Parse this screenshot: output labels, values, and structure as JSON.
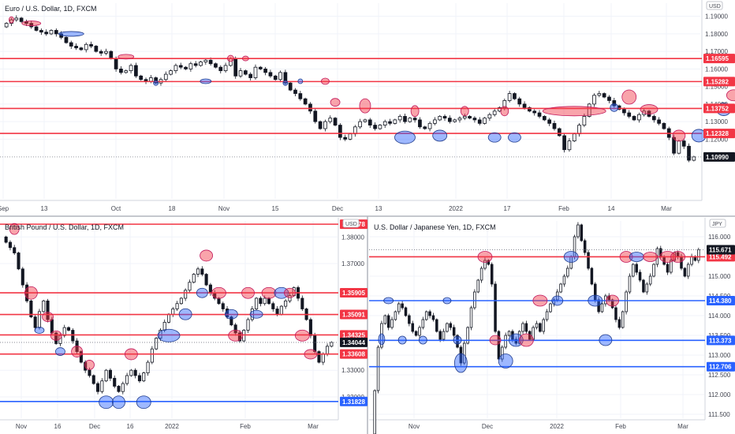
{
  "chart_data": [
    {
      "type": "candlestick",
      "title": "Euro / U.S. Dollar, 1D, FXCM",
      "currency": "USD",
      "ylim": [
        1.086,
        1.1975
      ],
      "y_ticks": [
        "1.19000",
        "1.18000",
        "1.17000",
        "1.16000",
        "1.15000",
        "1.14000",
        "1.13000",
        "1.12000"
      ],
      "x_ticks": [
        "Sep",
        "13",
        "Oct",
        "18",
        "Nov",
        "15",
        "Dec",
        "13",
        "2022",
        "17",
        "Feb",
        "14",
        "Mar"
      ],
      "levels": [
        {
          "label": "1.16595",
          "value": 1.16595,
          "color": "#f23645"
        },
        {
          "label": "1.15282",
          "value": 1.15282,
          "color": "#f23645"
        },
        {
          "label": "1.13752",
          "value": 1.13752,
          "color": "#f23645"
        },
        {
          "label": "1.12328",
          "value": 1.12328,
          "color": "#f23645"
        }
      ],
      "last_price": {
        "label": "1.10990",
        "value": 1.1099
      },
      "closes": [
        1.186,
        1.188,
        1.189,
        1.187,
        1.186,
        1.184,
        1.182,
        1.181,
        1.18,
        1.182,
        1.18,
        1.178,
        1.175,
        1.173,
        1.172,
        1.171,
        1.174,
        1.173,
        1.17,
        1.169,
        1.17,
        1.166,
        1.16,
        1.158,
        1.159,
        1.162,
        1.156,
        1.154,
        1.153,
        1.155,
        1.152,
        1.154,
        1.157,
        1.159,
        1.162,
        1.161,
        1.16,
        1.163,
        1.162,
        1.164,
        1.165,
        1.163,
        1.161,
        1.159,
        1.162,
        1.166,
        1.156,
        1.159,
        1.157,
        1.155,
        1.161,
        1.16,
        1.158,
        1.156,
        1.154,
        1.158,
        1.152,
        1.148,
        1.146,
        1.143,
        1.14,
        1.136,
        1.13,
        1.126,
        1.13,
        1.132,
        1.128,
        1.121,
        1.12,
        1.123,
        1.127,
        1.13,
        1.131,
        1.128,
        1.126,
        1.128,
        1.13,
        1.129,
        1.131,
        1.133,
        1.13,
        1.132,
        1.131,
        1.127,
        1.126,
        1.129,
        1.131,
        1.133,
        1.132,
        1.13,
        1.131,
        1.132,
        1.133,
        1.132,
        1.131,
        1.129,
        1.132,
        1.134,
        1.136,
        1.138,
        1.142,
        1.146,
        1.143,
        1.14,
        1.138,
        1.136,
        1.135,
        1.133,
        1.131,
        1.129,
        1.126,
        1.122,
        1.114,
        1.119,
        1.123,
        1.128,
        1.133,
        1.14,
        1.145,
        1.146,
        1.144,
        1.142,
        1.139,
        1.137,
        1.135,
        1.133,
        1.131,
        1.134,
        1.136,
        1.133,
        1.131,
        1.129,
        1.126,
        1.121,
        1.112,
        1.119,
        1.116,
        1.108,
        1.1099
      ],
      "markers": [
        {
          "i": 1,
          "v": 1.188,
          "rx": 3,
          "ry": 4,
          "fill": "red"
        },
        {
          "i": 5,
          "v": 1.186,
          "rx": 12,
          "ry": 3,
          "fill": "red"
        },
        {
          "i": 13,
          "v": 1.18,
          "rx": 16,
          "ry": 3,
          "fill": "blue"
        },
        {
          "i": 24,
          "v": 1.167,
          "rx": 10,
          "ry": 3,
          "fill": "red"
        },
        {
          "i": 30,
          "v": 1.152,
          "rx": 3,
          "ry": 3,
          "fill": "blue"
        },
        {
          "i": 40,
          "v": 1.153,
          "rx": 7,
          "ry": 3,
          "fill": "blue"
        },
        {
          "i": 45,
          "v": 1.166,
          "rx": 4,
          "ry": 4,
          "fill": "red"
        },
        {
          "i": 48,
          "v": 1.166,
          "rx": 4,
          "ry": 3,
          "fill": "red"
        },
        {
          "i": 56,
          "v": 1.152,
          "rx": 3,
          "ry": 3,
          "fill": "blue"
        },
        {
          "i": 59,
          "v": 1.153,
          "rx": 3,
          "ry": 3,
          "fill": "blue"
        },
        {
          "i": 64,
          "v": 1.153,
          "rx": 5,
          "ry": 4,
          "fill": "red"
        },
        {
          "i": 66,
          "v": 1.141,
          "rx": 6,
          "ry": 5,
          "fill": "red"
        },
        {
          "i": 72,
          "v": 1.139,
          "rx": 7,
          "ry": 9,
          "fill": "red"
        },
        {
          "i": 80,
          "v": 1.121,
          "rx": 13,
          "ry": 8,
          "fill": "blue"
        },
        {
          "i": 82,
          "v": 1.136,
          "rx": 5,
          "ry": 7,
          "fill": "red"
        },
        {
          "i": 87,
          "v": 1.122,
          "rx": 9,
          "ry": 7,
          "fill": "blue"
        },
        {
          "i": 92,
          "v": 1.136,
          "rx": 5,
          "ry": 6,
          "fill": "red"
        },
        {
          "i": 98,
          "v": 1.121,
          "rx": 8,
          "ry": 6,
          "fill": "blue"
        },
        {
          "i": 100,
          "v": 1.136,
          "rx": 5,
          "ry": 6,
          "fill": "red"
        },
        {
          "i": 102,
          "v": 1.121,
          "rx": 8,
          "ry": 6,
          "fill": "blue"
        },
        {
          "i": 114,
          "v": 1.136,
          "rx": 40,
          "ry": 6,
          "fill": "red"
        },
        {
          "i": 125,
          "v": 1.144,
          "rx": 9,
          "ry": 9,
          "fill": "red"
        },
        {
          "i": 122,
          "v": 1.138,
          "rx": 5,
          "ry": 5,
          "fill": "blue"
        },
        {
          "i": 129,
          "v": 1.137,
          "rx": 11,
          "ry": 6,
          "fill": "red"
        },
        {
          "i": 135,
          "v": 1.122,
          "rx": 8,
          "ry": 7,
          "fill": "red"
        },
        {
          "i": 139,
          "v": 1.122,
          "rx": 9,
          "ry": 8,
          "fill": "blue"
        },
        {
          "i": 144,
          "v": 1.137,
          "rx": 9,
          "ry": 8,
          "fill": "blue"
        },
        {
          "i": 146,
          "v": 1.145,
          "rx": 9,
          "ry": 7,
          "fill": "red"
        },
        {
          "i": 155,
          "v": 1.138,
          "rx": 13,
          "ry": 7,
          "fill": "red"
        },
        {
          "i": 162,
          "v": 1.122,
          "rx": 8,
          "ry": 7,
          "fill": "red"
        }
      ]
    },
    {
      "type": "candlestick",
      "title": "British Pound / U.S. Dollar, 1D, FXCM",
      "currency": "USD",
      "ylim": [
        1.312,
        1.386
      ],
      "y_ticks": [
        "1.38000",
        "1.37000",
        "1.33000",
        "1.32000"
      ],
      "x_ticks": [
        "Nov",
        "16",
        "Dec",
        "16",
        "2022",
        "Feb",
        "Mar"
      ],
      "levels": [
        {
          "label": "1.38478",
          "value": 1.38478,
          "color": "#f23645"
        },
        {
          "label": "1.35905",
          "value": 1.35905,
          "color": "#f23645"
        },
        {
          "label": "1.35091",
          "value": 1.35091,
          "color": "#f23645"
        },
        {
          "label": "1.34325",
          "value": 1.34325,
          "color": "#f23645"
        },
        {
          "label": "1.33608",
          "value": 1.33608,
          "color": "#f23645"
        },
        {
          "label": "1.31828",
          "value": 1.31828,
          "color": "#2962ff"
        }
      ],
      "last_price": {
        "label": "1.34044",
        "value": 1.34044
      },
      "closes": [
        1.378,
        1.376,
        1.374,
        1.368,
        1.362,
        1.356,
        1.35,
        1.346,
        1.352,
        1.356,
        1.349,
        1.344,
        1.34,
        1.343,
        1.346,
        1.345,
        1.341,
        1.337,
        1.333,
        1.33,
        1.328,
        1.325,
        1.322,
        1.326,
        1.33,
        1.327,
        1.324,
        1.322,
        1.325,
        1.328,
        1.33,
        1.328,
        1.326,
        1.329,
        1.333,
        1.338,
        1.342,
        1.345,
        1.348,
        1.351,
        1.353,
        1.355,
        1.357,
        1.36,
        1.363,
        1.366,
        1.368,
        1.366,
        1.362,
        1.359,
        1.357,
        1.355,
        1.353,
        1.35,
        1.347,
        1.344,
        1.341,
        1.345,
        1.349,
        1.353,
        1.357,
        1.355,
        1.357,
        1.355,
        1.353,
        1.351,
        1.354,
        1.356,
        1.358,
        1.361,
        1.357,
        1.353,
        1.349,
        1.343,
        1.337,
        1.333,
        1.336,
        1.339,
        1.34044
      ],
      "markers": [
        {
          "i": 2,
          "v": 1.383,
          "rx": 6,
          "ry": 7,
          "fill": "red"
        },
        {
          "i": 6,
          "v": 1.359,
          "rx": 8,
          "ry": 8,
          "fill": "red"
        },
        {
          "i": 8,
          "v": 1.345,
          "rx": 6,
          "ry": 4,
          "fill": "blue"
        },
        {
          "i": 10,
          "v": 1.35,
          "rx": 7,
          "ry": 6,
          "fill": "red"
        },
        {
          "i": 12,
          "v": 1.343,
          "rx": 7,
          "ry": 6,
          "fill": "red"
        },
        {
          "i": 13,
          "v": 1.337,
          "rx": 6,
          "ry": 5,
          "fill": "blue"
        },
        {
          "i": 17,
          "v": 1.337,
          "rx": 7,
          "ry": 7,
          "fill": "red"
        },
        {
          "i": 20,
          "v": 1.332,
          "rx": 6,
          "ry": 6,
          "fill": "red"
        },
        {
          "i": 24,
          "v": 1.318,
          "rx": 9,
          "ry": 8,
          "fill": "blue"
        },
        {
          "i": 27,
          "v": 1.318,
          "rx": 8,
          "ry": 8,
          "fill": "blue"
        },
        {
          "i": 30,
          "v": 1.336,
          "rx": 8,
          "ry": 7,
          "fill": "red"
        },
        {
          "i": 33,
          "v": 1.318,
          "rx": 9,
          "ry": 8,
          "fill": "blue"
        },
        {
          "i": 39,
          "v": 1.343,
          "rx": 14,
          "ry": 8,
          "fill": "blue"
        },
        {
          "i": 43,
          "v": 1.351,
          "rx": 8,
          "ry": 7,
          "fill": "blue"
        },
        {
          "i": 47,
          "v": 1.359,
          "rx": 7,
          "ry": 6,
          "fill": "blue"
        },
        {
          "i": 48,
          "v": 1.373,
          "rx": 8,
          "ry": 7,
          "fill": "red"
        },
        {
          "i": 51,
          "v": 1.359,
          "rx": 9,
          "ry": 7,
          "fill": "red"
        },
        {
          "i": 54,
          "v": 1.351,
          "rx": 8,
          "ry": 6,
          "fill": "blue"
        },
        {
          "i": 55,
          "v": 1.343,
          "rx": 9,
          "ry": 7,
          "fill": "red"
        },
        {
          "i": 58,
          "v": 1.359,
          "rx": 8,
          "ry": 7,
          "fill": "red"
        },
        {
          "i": 60,
          "v": 1.351,
          "rx": 8,
          "ry": 5,
          "fill": "blue"
        },
        {
          "i": 63,
          "v": 1.359,
          "rx": 9,
          "ry": 7,
          "fill": "red"
        },
        {
          "i": 66,
          "v": 1.359,
          "rx": 9,
          "ry": 7,
          "fill": "blue"
        },
        {
          "i": 68,
          "v": 1.359,
          "rx": 7,
          "ry": 6,
          "fill": "red"
        },
        {
          "i": 71,
          "v": 1.343,
          "rx": 9,
          "ry": 7,
          "fill": "red"
        },
        {
          "i": 73,
          "v": 1.336,
          "rx": 8,
          "ry": 6,
          "fill": "red"
        }
      ]
    },
    {
      "type": "candlestick",
      "title": "U.S. Dollar / Japanese Yen, 1D, FXCM",
      "currency": "JPY",
      "ylim": [
        111.4,
        116.4
      ],
      "y_ticks": [
        "116.000",
        "115.500",
        "115.000",
        "114.500",
        "114.000",
        "113.500",
        "113.000",
        "112.500",
        "112.000",
        "111.500"
      ],
      "x_ticks": [
        "Nov",
        "Dec",
        "2022",
        "Feb",
        "Mar"
      ],
      "levels": [
        {
          "label": "115.492",
          "value": 115.492,
          "color": "#f23645"
        },
        {
          "label": "114.380",
          "value": 114.38,
          "color": "#2962ff"
        },
        {
          "label": "113.373",
          "value": 113.373,
          "color": "#2962ff"
        },
        {
          "label": "112.706",
          "value": 112.706,
          "color": "#2962ff"
        }
      ],
      "last_price": {
        "label": "115.671",
        "value": 115.671
      },
      "closes": [
        112.1,
        113.2,
        113.8,
        114.0,
        113.7,
        113.9,
        114.1,
        114.3,
        114.2,
        114.0,
        113.8,
        113.6,
        113.5,
        113.7,
        113.9,
        114.1,
        114.0,
        113.9,
        113.6,
        113.4,
        113.6,
        113.8,
        113.7,
        113.5,
        113.2,
        112.8,
        113.3,
        113.7,
        114.2,
        114.6,
        114.9,
        115.2,
        115.4,
        115.3,
        114.8,
        113.6,
        112.9,
        113.2,
        113.5,
        113.6,
        113.4,
        113.3,
        113.6,
        113.8,
        113.6,
        113.4,
        113.7,
        113.8,
        113.6,
        113.9,
        114.1,
        114.3,
        114.4,
        114.6,
        114.8,
        115.0,
        115.2,
        115.5,
        116.0,
        116.3,
        115.9,
        115.6,
        115.2,
        114.8,
        114.4,
        114.1,
        114.3,
        114.5,
        114.4,
        114.2,
        113.9,
        113.7,
        114.1,
        114.6,
        115.0,
        115.3,
        115.1,
        114.9,
        114.6,
        114.8,
        115.0,
        115.3,
        115.7,
        115.5,
        115.3,
        115.1,
        115.4,
        115.6,
        115.5,
        115.2,
        115.0,
        115.3,
        115.5,
        115.4,
        115.671
      ],
      "markers": [
        {
          "i": 2,
          "v": 113.4,
          "rx": 4,
          "ry": 7,
          "fill": "blue"
        },
        {
          "i": 4,
          "v": 114.38,
          "rx": 6,
          "ry": 4,
          "fill": "blue"
        },
        {
          "i": 8,
          "v": 113.38,
          "rx": 5,
          "ry": 5,
          "fill": "blue"
        },
        {
          "i": 14,
          "v": 113.38,
          "rx": 5,
          "ry": 5,
          "fill": "blue"
        },
        {
          "i": 21,
          "v": 114.38,
          "rx": 5,
          "ry": 4,
          "fill": "blue"
        },
        {
          "i": 24,
          "v": 113.38,
          "rx": 5,
          "ry": 5,
          "fill": "blue"
        },
        {
          "i": 25,
          "v": 112.8,
          "rx": 8,
          "ry": 12,
          "fill": "blue"
        },
        {
          "i": 32,
          "v": 115.49,
          "rx": 9,
          "ry": 7,
          "fill": "red"
        },
        {
          "i": 35,
          "v": 113.38,
          "rx": 7,
          "ry": 6,
          "fill": "red"
        },
        {
          "i": 38,
          "v": 112.85,
          "rx": 9,
          "ry": 9,
          "fill": "blue"
        },
        {
          "i": 41,
          "v": 113.38,
          "rx": 9,
          "ry": 8,
          "fill": "blue"
        },
        {
          "i": 44,
          "v": 113.38,
          "rx": 9,
          "ry": 8,
          "fill": "red"
        },
        {
          "i": 48,
          "v": 114.38,
          "rx": 9,
          "ry": 7,
          "fill": "red"
        },
        {
          "i": 53,
          "v": 114.38,
          "rx": 7,
          "ry": 6,
          "fill": "blue"
        },
        {
          "i": 57,
          "v": 115.49,
          "rx": 9,
          "ry": 7,
          "fill": "blue"
        },
        {
          "i": 64,
          "v": 114.38,
          "rx": 9,
          "ry": 7,
          "fill": "blue"
        },
        {
          "i": 67,
          "v": 113.38,
          "rx": 8,
          "ry": 7,
          "fill": "blue"
        },
        {
          "i": 69,
          "v": 114.38,
          "rx": 8,
          "ry": 7,
          "fill": "red"
        },
        {
          "i": 73,
          "v": 115.49,
          "rx": 8,
          "ry": 7,
          "fill": "red"
        },
        {
          "i": 76,
          "v": 115.49,
          "rx": 9,
          "ry": 6,
          "fill": "blue"
        },
        {
          "i": 80,
          "v": 115.49,
          "rx": 9,
          "ry": 6,
          "fill": "red"
        },
        {
          "i": 85,
          "v": 115.49,
          "rx": 10,
          "ry": 7,
          "fill": "red"
        },
        {
          "i": 88,
          "v": 115.49,
          "rx": 9,
          "ry": 7,
          "fill": "red"
        }
      ]
    }
  ]
}
